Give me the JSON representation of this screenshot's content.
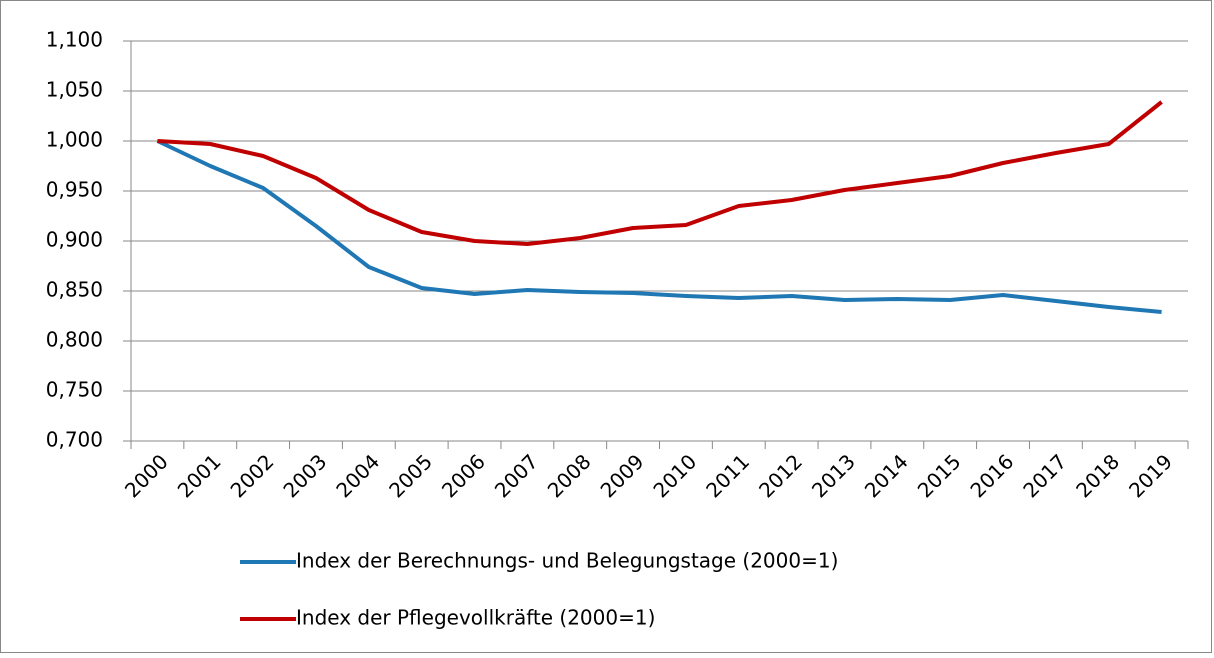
{
  "chart_data": {
    "type": "line",
    "categories": [
      "2000",
      "2001",
      "2002",
      "2003",
      "2004",
      "2005",
      "2006",
      "2007",
      "2008",
      "2009",
      "2010",
      "2011",
      "2012",
      "2013",
      "2014",
      "2015",
      "2016",
      "2017",
      "2018",
      "2019"
    ],
    "series": [
      {
        "name": "Index der Berechnungs- und Belegungstage (2000=1)",
        "color": "#1f77b4",
        "values": [
          1.0,
          0.975,
          0.953,
          0.915,
          0.874,
          0.853,
          0.847,
          0.851,
          0.849,
          0.848,
          0.845,
          0.843,
          0.845,
          0.841,
          0.842,
          0.841,
          0.846,
          0.84,
          0.834,
          0.829
        ]
      },
      {
        "name": "Index der Pflegevollkräfte (2000=1)",
        "color": "#c00000",
        "values": [
          1.0,
          0.997,
          0.985,
          0.963,
          0.931,
          0.909,
          0.9,
          0.897,
          0.903,
          0.913,
          0.916,
          0.935,
          0.941,
          0.951,
          0.958,
          0.965,
          0.978,
          0.988,
          0.997,
          1.039
        ]
      }
    ],
    "ylim": [
      0.7,
      1.1
    ],
    "yticks": [
      {
        "value": 0.7,
        "label": "0,700"
      },
      {
        "value": 0.75,
        "label": "0,750"
      },
      {
        "value": 0.8,
        "label": "0,800"
      },
      {
        "value": 0.85,
        "label": "0,850"
      },
      {
        "value": 0.9,
        "label": "0,900"
      },
      {
        "value": 0.95,
        "label": "0,950"
      },
      {
        "value": 1.0,
        "label": "1,000"
      },
      {
        "value": 1.05,
        "label": "1,050"
      },
      {
        "value": 1.1,
        "label": "1,100"
      }
    ],
    "grid": true
  }
}
